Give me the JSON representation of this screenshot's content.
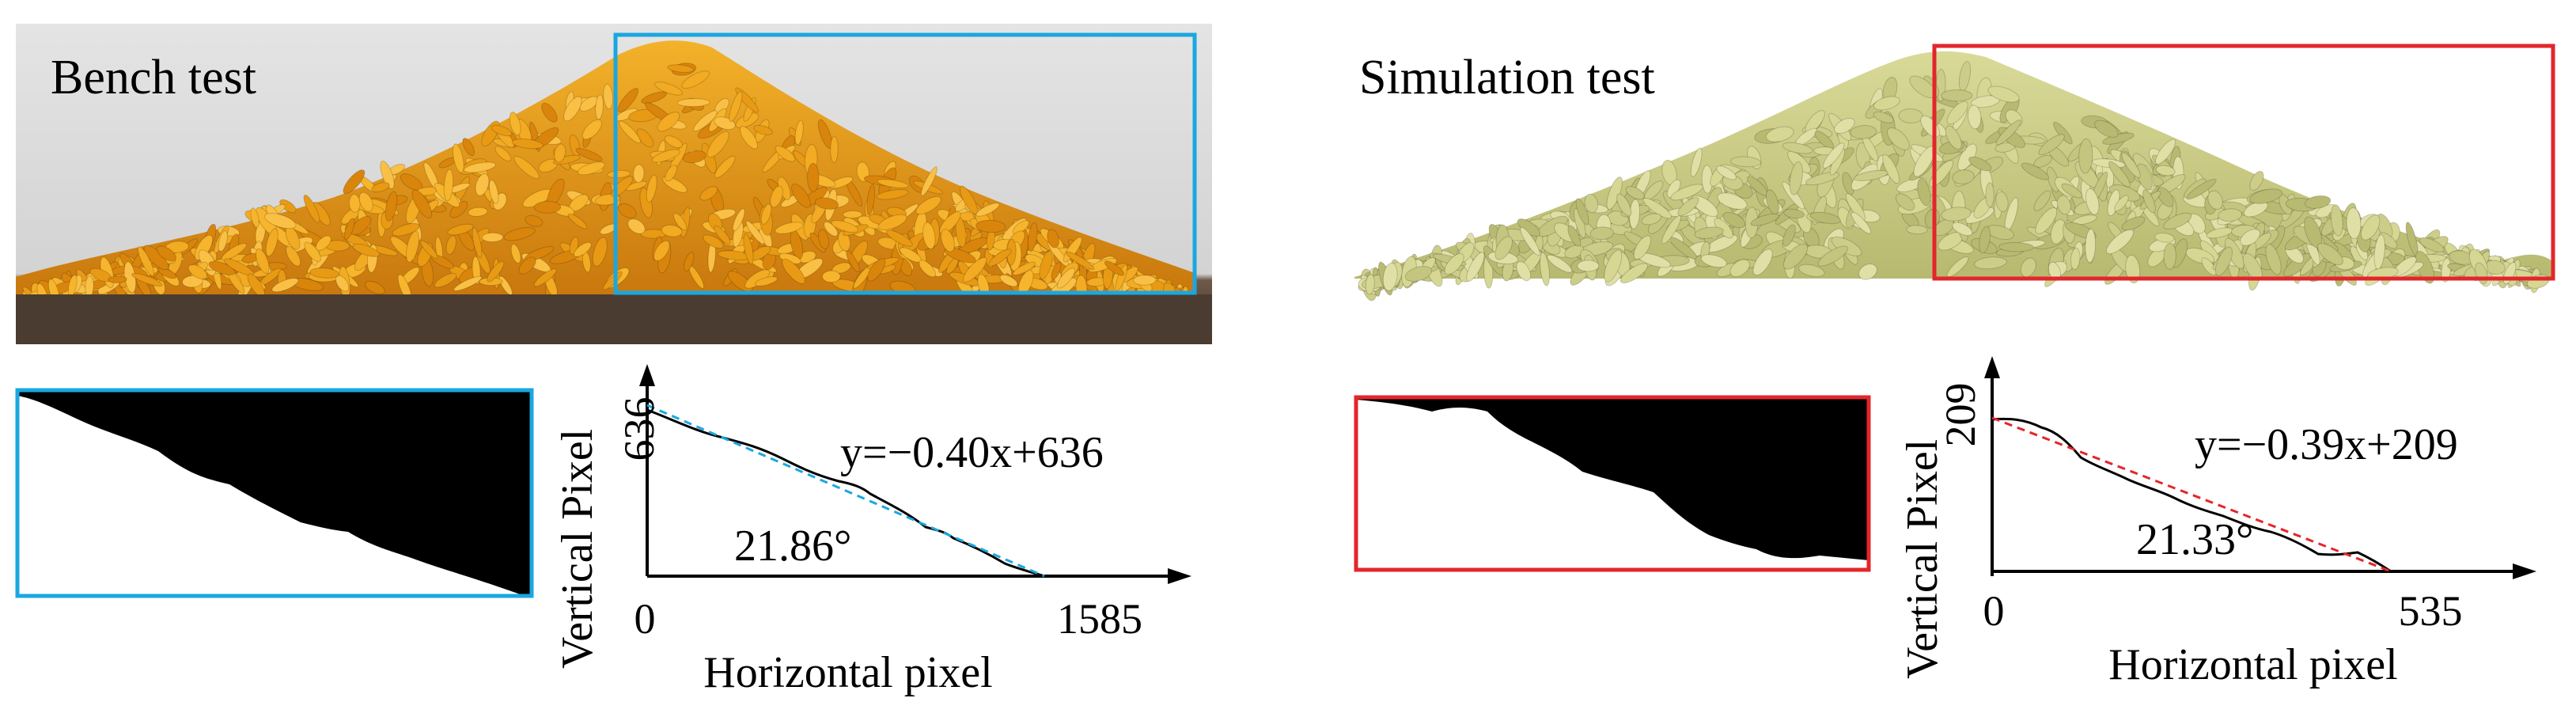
{
  "panels": {
    "bench": {
      "title": "Bench test",
      "box_color": "#1aa7e0",
      "equation": "y=−0.40x+636",
      "angle": "21.86°",
      "y_label": "Vertical Pixel",
      "x_label": "Horizontal pixel",
      "y_tick": "636",
      "x_tick_origin": "0",
      "x_tick_max": "1585",
      "fit_line_color": "#1aa7e0",
      "grain_color": "#f0a81c"
    },
    "simulation": {
      "title": "Simulation test",
      "box_color": "#e3262b",
      "equation": "y=−0.39x+209",
      "angle": "21.33°",
      "y_label": "Vertical Pixel",
      "x_label": "Horizontal pixel",
      "y_tick": "209",
      "x_tick_origin": "0",
      "x_tick_max": "535",
      "fit_line_color": "#e3262b",
      "grain_color": "#cfd08a"
    }
  }
}
